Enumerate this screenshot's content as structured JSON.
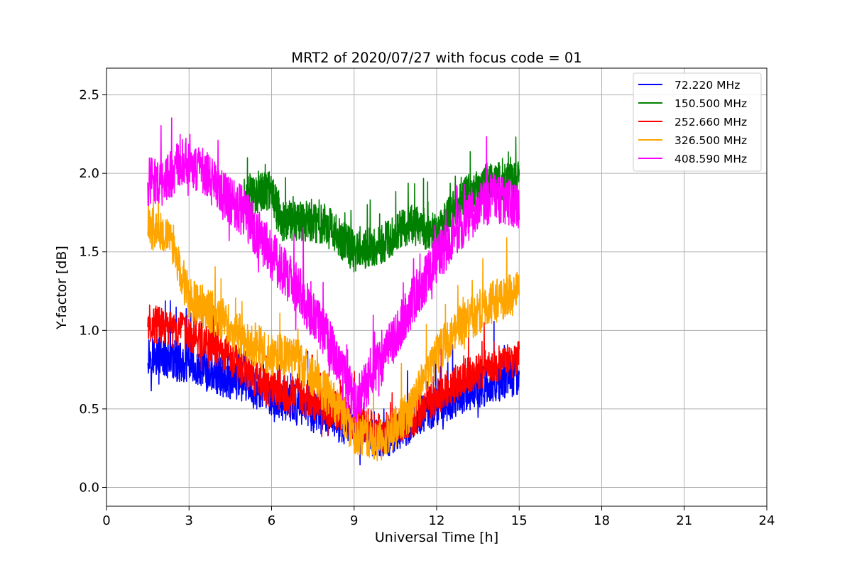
{
  "chart_data": {
    "type": "line",
    "title": "MRT2 of 2020/07/27 with focus code = 01",
    "xlabel": "Universal Time [h]",
    "ylabel": "Y-factor [dB]",
    "xlim": [
      0,
      24
    ],
    "ylim": [
      -0.12,
      2.67
    ],
    "xticks": [
      0,
      3,
      6,
      9,
      12,
      15,
      18,
      21,
      24
    ],
    "yticks": [
      0.0,
      0.5,
      1.0,
      1.5,
      2.0,
      2.5
    ],
    "grid": true,
    "legend_position": "top-right",
    "x_start": 1.5,
    "x_end": 15.0,
    "series": [
      {
        "name": "72.220 MHz",
        "color": "#0000ff",
        "noise": 0.13,
        "spikes": 0.15,
        "x": [
          1.5,
          2.0,
          3.0,
          4.0,
          5.0,
          6.0,
          7.0,
          8.0,
          9.0,
          10.0,
          11.0,
          12.0,
          13.0,
          14.0,
          15.0
        ],
        "y": [
          0.85,
          0.83,
          0.78,
          0.72,
          0.66,
          0.58,
          0.52,
          0.44,
          0.38,
          0.3,
          0.4,
          0.52,
          0.6,
          0.66,
          0.72
        ]
      },
      {
        "name": "150.500 MHz",
        "color": "#008000",
        "noise": 0.13,
        "spikes": 0.12,
        "x": [
          5.0,
          6.0,
          6.3,
          7.0,
          8.0,
          9.0,
          10.0,
          11.0,
          12.0,
          13.0,
          14.0,
          15.0
        ],
        "y": [
          1.85,
          1.9,
          1.7,
          1.7,
          1.68,
          1.5,
          1.55,
          1.68,
          1.62,
          1.85,
          1.95,
          1.95
        ]
      },
      {
        "name": "252.660 MHz",
        "color": "#ff0000",
        "noise": 0.12,
        "spikes": 0.12,
        "x": [
          1.5,
          2.0,
          3.0,
          4.0,
          5.0,
          6.0,
          7.0,
          8.0,
          9.0,
          10.0,
          11.0,
          12.0,
          13.0,
          14.0,
          15.0
        ],
        "y": [
          1.05,
          1.03,
          0.98,
          0.88,
          0.75,
          0.62,
          0.58,
          0.52,
          0.42,
          0.35,
          0.42,
          0.58,
          0.7,
          0.78,
          0.82
        ]
      },
      {
        "name": "326.500 MHz",
        "color": "#ffa500",
        "noise": 0.14,
        "spikes": 0.14,
        "x": [
          1.5,
          2.0,
          2.4,
          3.0,
          4.0,
          5.0,
          6.0,
          7.0,
          8.0,
          9.0,
          10.0,
          11.0,
          12.0,
          13.0,
          14.0,
          15.0
        ],
        "y": [
          1.65,
          1.65,
          1.55,
          1.2,
          1.1,
          0.95,
          0.85,
          0.8,
          0.6,
          0.35,
          0.3,
          0.48,
          0.85,
          1.05,
          1.18,
          1.25
        ]
      },
      {
        "name": "408.590 MHz",
        "color": "#ff00ff",
        "noise": 0.16,
        "spikes": 0.18,
        "x": [
          1.5,
          2.0,
          3.0,
          4.0,
          5.0,
          6.0,
          7.0,
          8.0,
          9.0,
          10.0,
          11.0,
          12.0,
          13.0,
          14.0,
          15.0
        ],
        "y": [
          1.95,
          1.95,
          2.1,
          1.9,
          1.75,
          1.48,
          1.25,
          0.95,
          0.55,
          0.8,
          1.15,
          1.45,
          1.7,
          1.85,
          1.8
        ]
      }
    ]
  }
}
